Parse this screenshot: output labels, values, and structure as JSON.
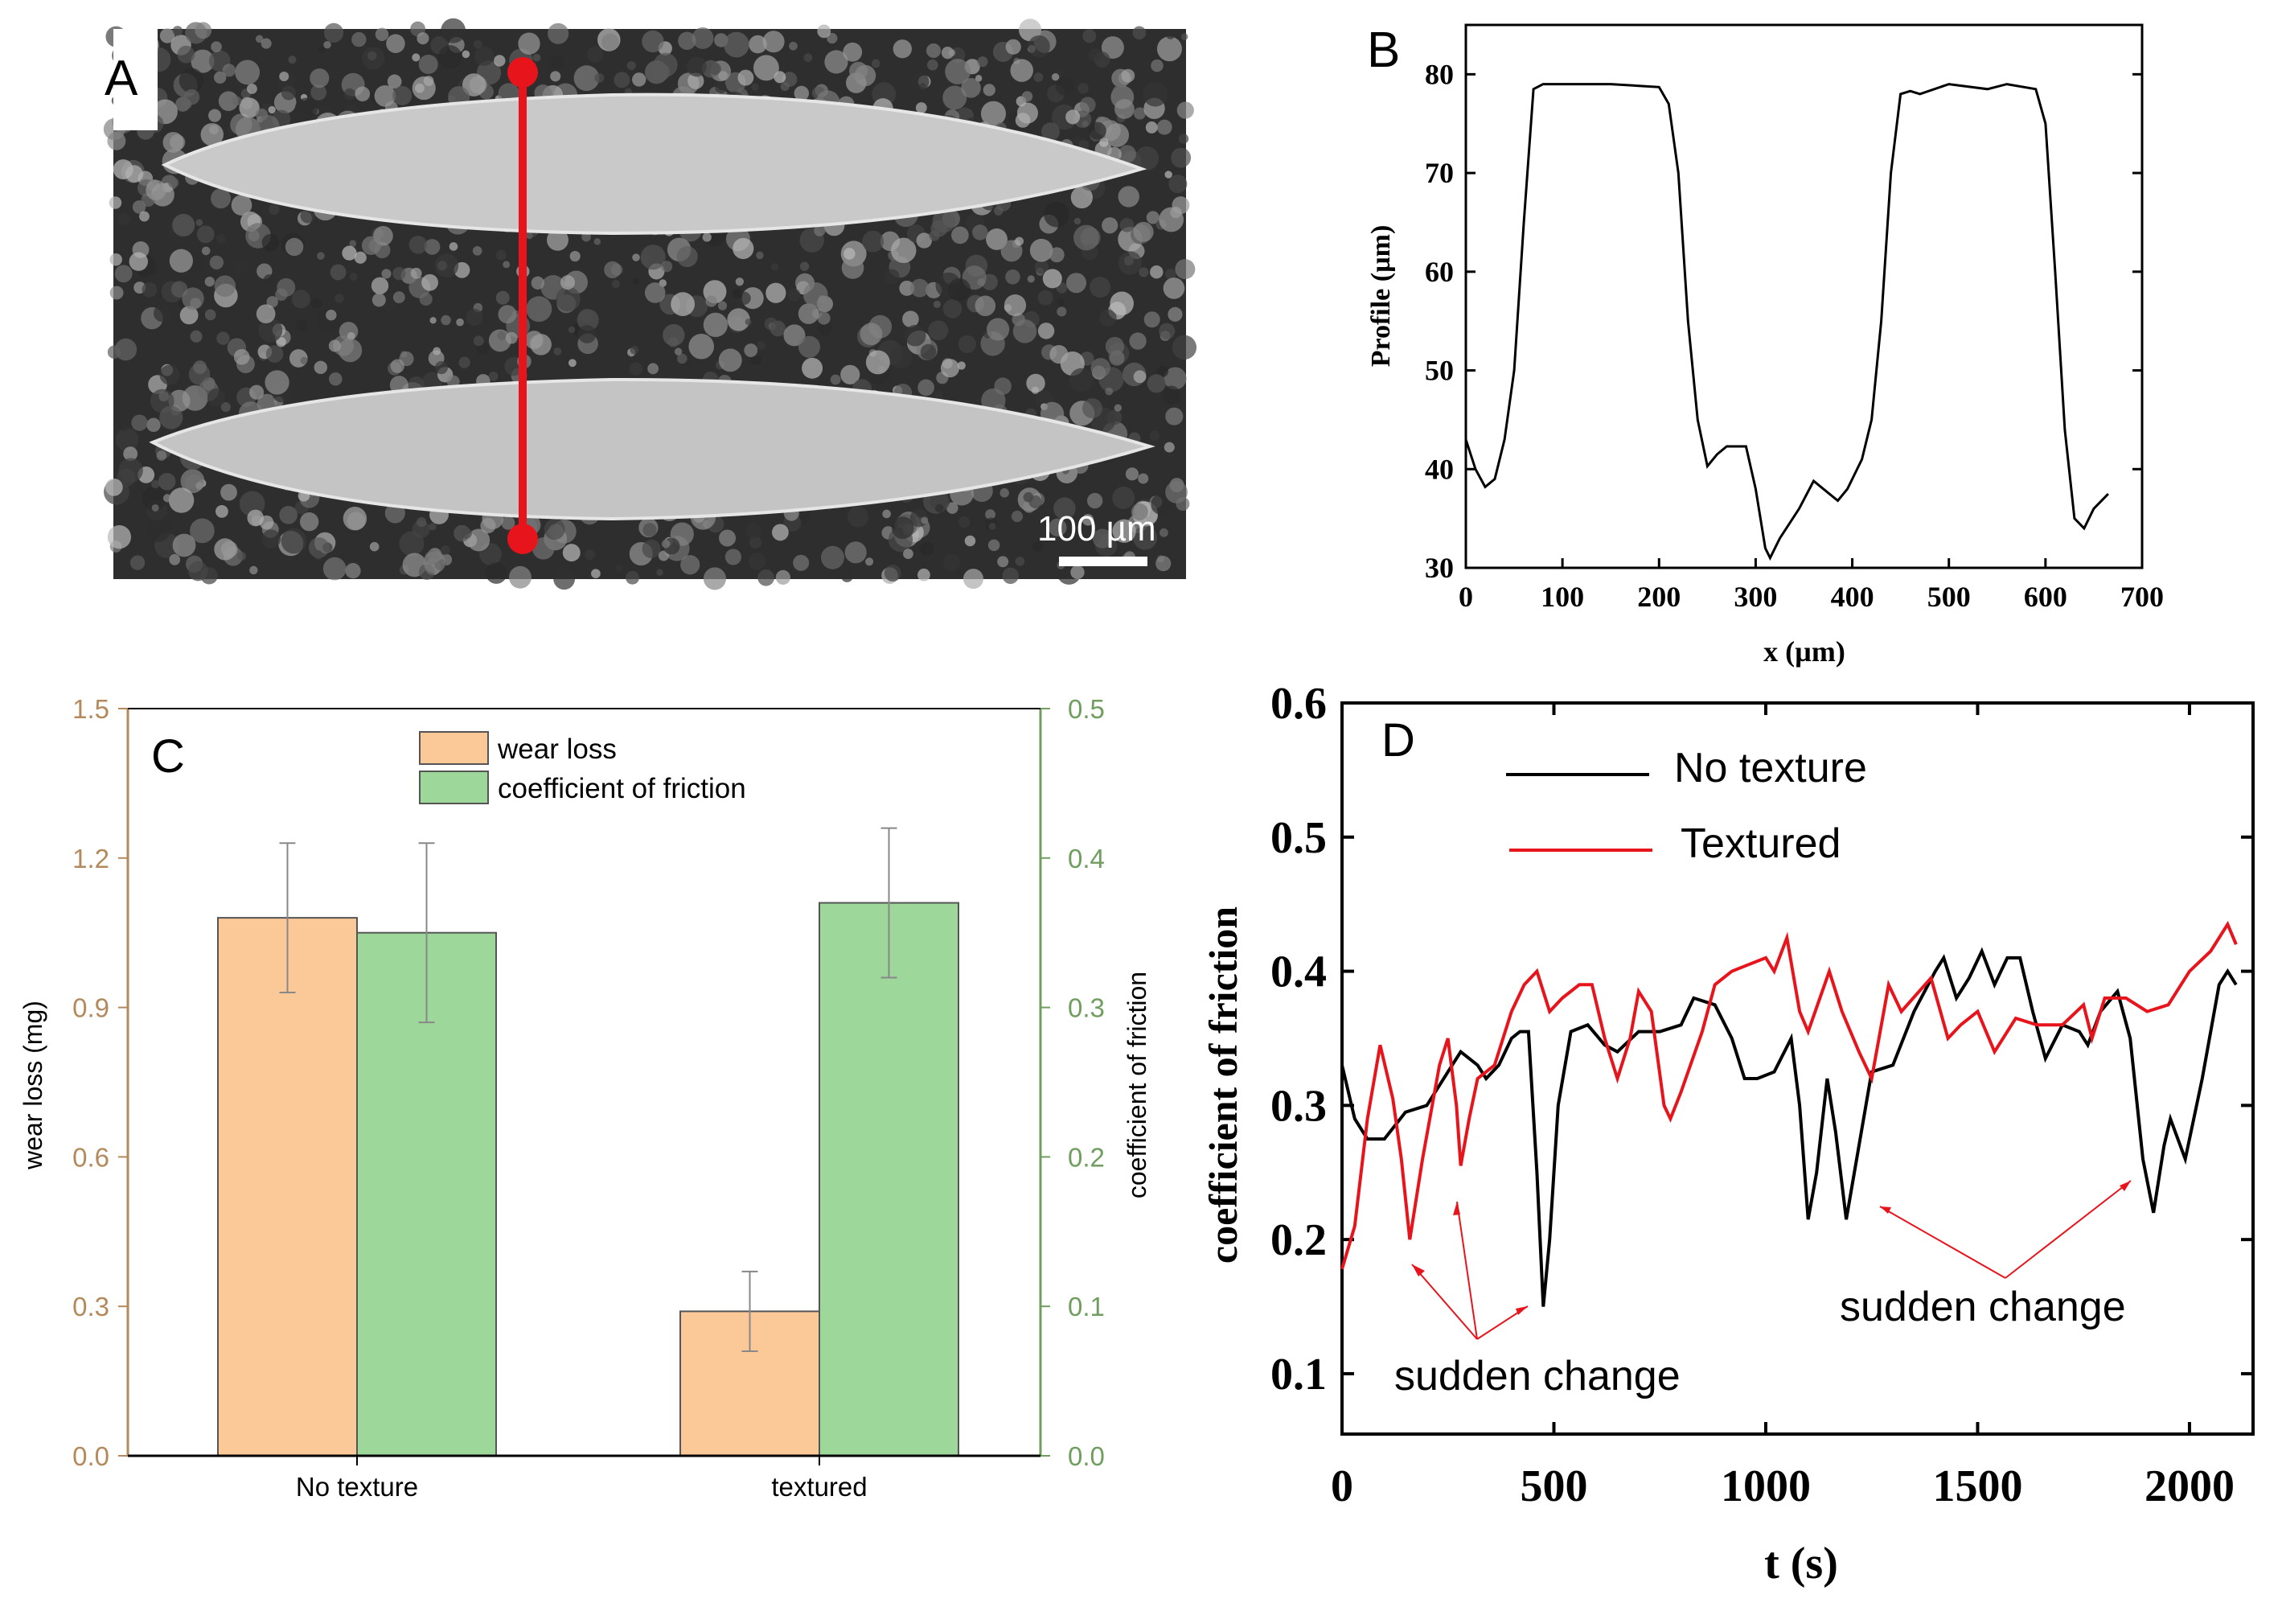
{
  "panel_a": {
    "label": "A",
    "scale_bar_text": "100 µm",
    "line_color": "#e8141c"
  },
  "chart_data": [
    {
      "panel": "B",
      "type": "line",
      "xlabel": "x (µm)",
      "ylabel": "Profile (µm)",
      "xlim": [
        0,
        700
      ],
      "ylim": [
        30,
        85
      ],
      "xticks": [
        "0",
        "100",
        "200",
        "300",
        "400",
        "500",
        "600",
        "700"
      ],
      "yticks": [
        "30",
        "40",
        "50",
        "60",
        "70",
        "80"
      ],
      "grid": false,
      "series": [
        {
          "name": "profile",
          "color": "#000000",
          "x": [
            0,
            10,
            20,
            30,
            40,
            50,
            60,
            70,
            80,
            150,
            200,
            210,
            220,
            230,
            240,
            250,
            260,
            270,
            290,
            300,
            310,
            315,
            325,
            345,
            360,
            370,
            385,
            395,
            410,
            420,
            430,
            440,
            450,
            460,
            470,
            500,
            540,
            560,
            590,
            600,
            610,
            620,
            630,
            640,
            650,
            665
          ],
          "y": [
            43,
            40,
            38.2,
            39,
            43,
            50,
            65,
            78.5,
            79,
            79,
            78.7,
            77,
            70,
            55,
            45,
            40.3,
            41.5,
            42.3,
            42.3,
            38,
            32,
            31,
            33,
            36,
            38.8,
            38,
            36.8,
            38,
            41,
            45,
            55,
            70,
            78,
            78.3,
            78,
            79,
            78.5,
            79,
            78.5,
            75,
            60,
            44,
            35,
            34,
            36,
            37.5
          ]
        }
      ]
    },
    {
      "panel": "C",
      "type": "bar",
      "categories": [
        "No texture",
        "textured"
      ],
      "ylabel": "wear loss (mg)",
      "ylabel_right": "coefficient of friction",
      "ylim": [
        0,
        1.5
      ],
      "ylim_right": [
        0,
        0.5
      ],
      "yticks": [
        "0.0",
        "0.3",
        "0.6",
        "0.9",
        "1.2",
        "1.5"
      ],
      "yticks_right": [
        "0.0",
        "0.1",
        "0.2",
        "0.3",
        "0.4",
        "0.5"
      ],
      "legend_position": "top-center",
      "series": [
        {
          "name": "wear loss",
          "axis": "left",
          "color": "#fbc898",
          "values": [
            1.08,
            0.29
          ],
          "errors": [
            0.15,
            0.08
          ]
        },
        {
          "name": "coefficient of friction",
          "axis": "right",
          "color": "#9dd89a",
          "values": [
            0.35,
            0.37
          ],
          "errors": [
            0.06,
            0.05
          ]
        }
      ],
      "left_axis_color": "#b48a5c",
      "right_axis_color": "#6f9e5f"
    },
    {
      "panel": "D",
      "type": "line",
      "xlabel": "t (s)",
      "ylabel": "coefficient of friction",
      "xlim": [
        0,
        2150
      ],
      "ylim": [
        0.055,
        0.6
      ],
      "xticks": [
        "0",
        "500",
        "1000",
        "1500",
        "2000"
      ],
      "yticks": [
        "0.1",
        "0.2",
        "0.3",
        "0.4",
        "0.5",
        "0.6"
      ],
      "legend_position": "top-left",
      "annotations": [
        "sudden change",
        "sudden change"
      ],
      "series": [
        {
          "name": "No texture",
          "color": "#000000",
          "x": [
            0,
            30,
            60,
            100,
            150,
            200,
            250,
            280,
            320,
            340,
            370,
            400,
            420,
            440,
            460,
            475,
            490,
            510,
            540,
            580,
            620,
            650,
            700,
            750,
            800,
            830,
            880,
            920,
            950,
            980,
            1020,
            1060,
            1080,
            1100,
            1120,
            1145,
            1165,
            1190,
            1220,
            1250,
            1300,
            1350,
            1400,
            1420,
            1450,
            1480,
            1510,
            1540,
            1570,
            1600,
            1630,
            1660,
            1700,
            1740,
            1760,
            1790,
            1830,
            1860,
            1890,
            1915,
            1940,
            1955,
            1990,
            2030,
            2070,
            2090,
            2110
          ],
          "y": [
            0.33,
            0.29,
            0.275,
            0.275,
            0.295,
            0.3,
            0.325,
            0.34,
            0.33,
            0.32,
            0.33,
            0.35,
            0.355,
            0.355,
            0.25,
            0.15,
            0.2,
            0.3,
            0.355,
            0.36,
            0.345,
            0.34,
            0.355,
            0.355,
            0.36,
            0.38,
            0.375,
            0.35,
            0.32,
            0.32,
            0.325,
            0.35,
            0.3,
            0.215,
            0.25,
            0.32,
            0.28,
            0.215,
            0.27,
            0.325,
            0.33,
            0.37,
            0.4,
            0.41,
            0.38,
            0.395,
            0.415,
            0.39,
            0.41,
            0.41,
            0.37,
            0.335,
            0.36,
            0.355,
            0.345,
            0.37,
            0.385,
            0.35,
            0.26,
            0.22,
            0.27,
            0.29,
            0.26,
            0.32,
            0.39,
            0.4,
            0.39
          ]
        },
        {
          "name": "Textured",
          "color": "#e8141c",
          "x": [
            0,
            30,
            60,
            90,
            120,
            140,
            160,
            190,
            230,
            250,
            270,
            280,
            300,
            320,
            360,
            400,
            430,
            460,
            490,
            520,
            560,
            590,
            620,
            650,
            680,
            700,
            730,
            760,
            775,
            800,
            850,
            880,
            920,
            960,
            1000,
            1020,
            1050,
            1080,
            1100,
            1150,
            1180,
            1220,
            1250,
            1290,
            1320,
            1390,
            1430,
            1460,
            1500,
            1540,
            1590,
            1640,
            1700,
            1750,
            1770,
            1800,
            1850,
            1900,
            1950,
            2000,
            2050,
            2090,
            2110
          ],
          "y": [
            0.178,
            0.21,
            0.29,
            0.345,
            0.305,
            0.26,
            0.2,
            0.26,
            0.33,
            0.35,
            0.3,
            0.255,
            0.29,
            0.32,
            0.33,
            0.37,
            0.39,
            0.4,
            0.37,
            0.38,
            0.39,
            0.39,
            0.35,
            0.32,
            0.35,
            0.385,
            0.37,
            0.3,
            0.29,
            0.31,
            0.355,
            0.39,
            0.4,
            0.405,
            0.41,
            0.4,
            0.425,
            0.37,
            0.355,
            0.4,
            0.37,
            0.34,
            0.32,
            0.39,
            0.37,
            0.395,
            0.35,
            0.36,
            0.37,
            0.34,
            0.365,
            0.36,
            0.36,
            0.375,
            0.35,
            0.38,
            0.38,
            0.37,
            0.375,
            0.4,
            0.415,
            0.435,
            0.42
          ]
        }
      ]
    }
  ]
}
